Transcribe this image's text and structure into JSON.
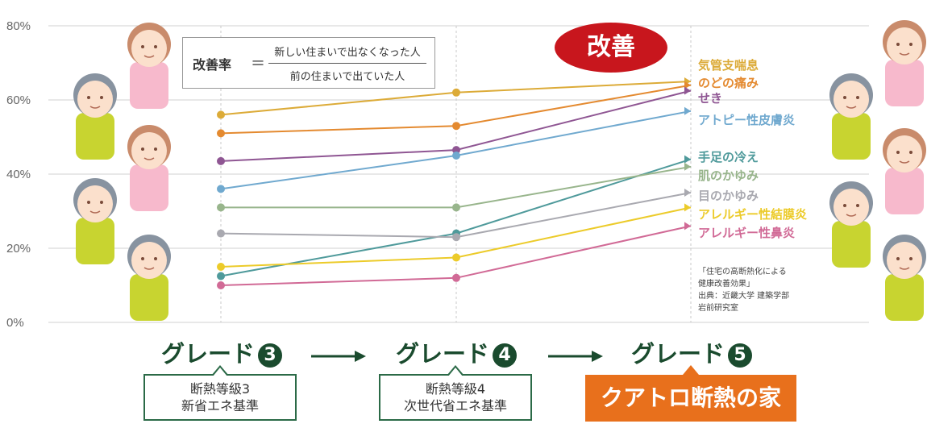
{
  "chart_data": {
    "type": "line",
    "x": [
      "グレード3",
      "グレード4",
      "グレード5"
    ],
    "y_ticks": [
      "0%",
      "20%",
      "40%",
      "60%",
      "80%"
    ],
    "ylim": [
      0,
      80
    ],
    "grid": true,
    "series": [
      {
        "name": "気管支喘息",
        "color": "#dcab38",
        "values": [
          56,
          62,
          65
        ]
      },
      {
        "name": "のどの痛み",
        "color": "#e48a30",
        "values": [
          51,
          53,
          64
        ]
      },
      {
        "name": "せき",
        "color": "#8f5693",
        "values": [
          43.5,
          46.5,
          62.5
        ]
      },
      {
        "name": "アトピー性皮膚炎",
        "color": "#70a9cf",
        "values": [
          36,
          45,
          57
        ]
      },
      {
        "name": "手足の冷え",
        "color": "#4f9a9b",
        "values": [
          12.5,
          24,
          44
        ]
      },
      {
        "name": "肌のかゆみ",
        "color": "#98b58c",
        "values": [
          31,
          31,
          42
        ]
      },
      {
        "name": "目のかゆみ",
        "color": "#a9a9b0",
        "values": [
          24,
          23,
          35
        ]
      },
      {
        "name": "アレルギー性結膜炎",
        "color": "#eccb2a",
        "values": [
          15,
          17.5,
          31
        ]
      },
      {
        "name": "アレルギー性鼻炎",
        "color": "#d16a96",
        "values": [
          10,
          12,
          26
        ]
      }
    ]
  },
  "formula": {
    "label": "改善率",
    "equals": "＝",
    "numerator": "新しい住まいで出なくなった人",
    "denominator": "前の住まいで出ていた人"
  },
  "badge": "改善",
  "grades": [
    {
      "label": "グレード",
      "num": "3"
    },
    {
      "label": "グレード",
      "num": "4"
    },
    {
      "label": "グレード",
      "num": "5"
    }
  ],
  "grade3_box": {
    "line1": "断熱等級3",
    "line2": "新省エネ基準"
  },
  "grade4_box": {
    "line1": "断熱等級4",
    "line2": "次世代省エネ基準"
  },
  "grade5_box": "クアトロ断熱の家",
  "source": {
    "line1": "「住宅の高断熱化による",
    "line2": "健康改善効果」",
    "line3": "出典：近畿大学 建築学部",
    "line4": "岩前研究室"
  },
  "colors": {
    "grade": "#1a4b2e",
    "badge": "#c8161d",
    "house": "#e8701c"
  }
}
